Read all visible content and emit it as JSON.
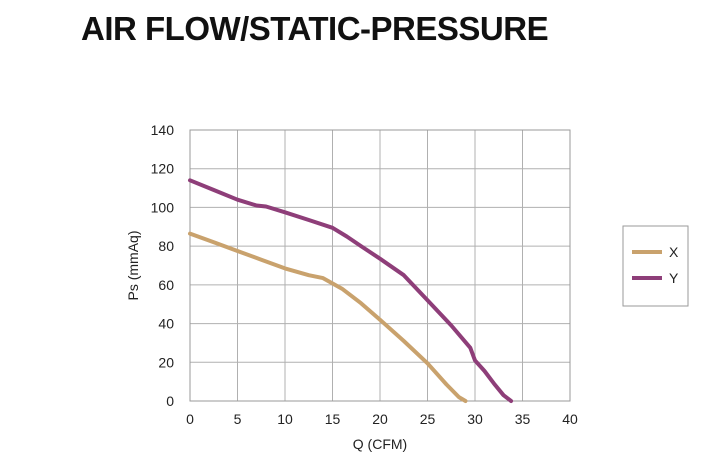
{
  "title": "AIR FLOW/STATIC-PRESSURE",
  "chart_data": {
    "type": "line",
    "title": "AIR FLOW/STATIC-PRESSURE",
    "xlabel": "Q (CFM)",
    "ylabel": "Ps (mmAq)",
    "xlim": [
      0,
      40
    ],
    "ylim": [
      0,
      140
    ],
    "xticks": [
      0,
      5,
      10,
      15,
      20,
      25,
      30,
      35,
      40
    ],
    "yticks": [
      0,
      20,
      40,
      60,
      80,
      100,
      120,
      140
    ],
    "grid": true,
    "legend_position": "right",
    "series": [
      {
        "name": "X",
        "color": "#C9A26D",
        "x": [
          0,
          2.5,
          5,
          7.5,
          10,
          12.5,
          14,
          16,
          18,
          20,
          22.5,
          25,
          27,
          28.3,
          29
        ],
        "y": [
          86.5,
          82,
          77.5,
          73,
          68.5,
          65,
          63.5,
          58,
          50.5,
          42,
          31,
          19.5,
          8.5,
          2,
          0
        ]
      },
      {
        "name": "Y",
        "color": "#8E3E79",
        "x": [
          0,
          2.5,
          5,
          7,
          8,
          10,
          12.5,
          15,
          16.5,
          18,
          20,
          22.5,
          25,
          27.5,
          29.5,
          30,
          31,
          32,
          33,
          33.8
        ],
        "y": [
          114,
          109,
          104,
          101,
          100.5,
          97.5,
          93.5,
          89.5,
          85,
          80,
          73.5,
          65,
          52,
          39,
          27.5,
          21,
          15.5,
          9,
          3,
          0
        ]
      }
    ]
  }
}
